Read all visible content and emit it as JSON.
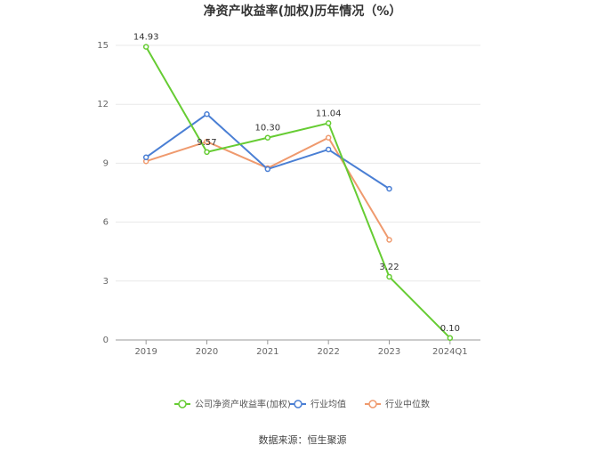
{
  "chart_data": {
    "type": "line",
    "title": "净资产收益率(加权)历年情况（%）",
    "categories": [
      "2019",
      "2020",
      "2021",
      "2022",
      "2023",
      "2024Q1"
    ],
    "yticks": [
      0,
      3,
      6,
      9,
      12,
      15
    ],
    "ylim": [
      0,
      15.5
    ],
    "grid": true,
    "legend_position": "bottom-center",
    "series": [
      {
        "name": "公司净资产收益率(加权)",
        "color": "#66cc33",
        "values": [
          14.93,
          9.57,
          10.3,
          11.04,
          3.22,
          0.1
        ],
        "labels": [
          "14.93",
          "9.57",
          "10.30",
          "11.04",
          "3.22",
          "0.10"
        ]
      },
      {
        "name": "行业均值",
        "color": "#4a7fd4",
        "values": [
          9.3,
          11.5,
          8.7,
          9.7,
          7.7,
          null
        ],
        "labels": []
      },
      {
        "name": "行业中位数",
        "color": "#ef9a6e",
        "values": [
          9.1,
          10.1,
          8.75,
          10.3,
          5.1,
          null
        ],
        "labels": []
      }
    ]
  },
  "source_text": "数据来源：恒生聚源"
}
